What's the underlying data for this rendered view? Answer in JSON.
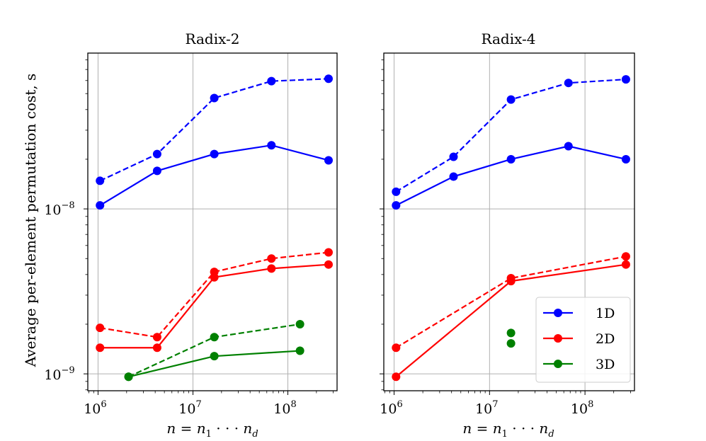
{
  "chart_data": {
    "type": "line",
    "ylabel": "Average per-element permutation cost, s",
    "shared_ylim": [
      7.9e-10,
      8.8e-08
    ],
    "yscale": "log",
    "xscale": "log",
    "yticks": [
      {
        "value": 1e-09,
        "base": "10",
        "exp": "−9"
      },
      {
        "value": 1e-08,
        "base": "10",
        "exp": "−8"
      }
    ],
    "xticks": [
      {
        "value": 1000000,
        "base": "10",
        "exp": "6"
      },
      {
        "value": 10000000,
        "base": "10",
        "exp": "7"
      },
      {
        "value": 100000000,
        "base": "10",
        "exp": "8"
      }
    ],
    "legend": {
      "location": "lower right",
      "entries": [
        {
          "label": "1D",
          "color": "#0000ff"
        },
        {
          "label": "2D",
          "color": "#ff0000"
        },
        {
          "label": "3D",
          "color": "#008000"
        }
      ]
    },
    "panels": [
      {
        "title": "Radix-2",
        "xlabel": "n = n1 ··· nd",
        "xlim": [
          780000,
          330000000
        ],
        "series": [
          {
            "name": "1D",
            "color": "#0000ff",
            "style": "dashed",
            "x": [
              1048576,
              4194304,
              16777216,
              67108864,
              268435456
            ],
            "y": [
              1.48e-08,
              2.15e-08,
              4.7e-08,
              5.95e-08,
              6.15e-08
            ]
          },
          {
            "name": "1D",
            "color": "#0000ff",
            "style": "solid",
            "x": [
              1048576,
              4194304,
              16777216,
              67108864,
              268435456
            ],
            "y": [
              1.05e-08,
              1.7e-08,
              2.15e-08,
              2.43e-08,
              1.97e-08
            ]
          },
          {
            "name": "2D",
            "color": "#ff0000",
            "style": "dashed",
            "x": [
              1048576,
              4194304,
              16777216,
              67108864,
              268435456
            ],
            "y": [
              1.9e-09,
              1.67e-09,
              4.15e-09,
              5e-09,
              5.45e-09
            ]
          },
          {
            "name": "2D",
            "color": "#ff0000",
            "style": "solid",
            "x": [
              1048576,
              4194304,
              16777216,
              67108864,
              268435456
            ],
            "y": [
              1.44e-09,
              1.44e-09,
              3.85e-09,
              4.35e-09,
              4.6e-09
            ]
          },
          {
            "name": "3D",
            "color": "#008000",
            "style": "dashed",
            "x": [
              2097152,
              16777216,
              134217728
            ],
            "y": [
              9.6e-10,
              1.67e-09,
              2e-09
            ]
          },
          {
            "name": "3D",
            "color": "#008000",
            "style": "solid",
            "x": [
              2097152,
              16777216,
              134217728
            ],
            "y": [
              9.6e-10,
              1.28e-09,
              1.38e-09
            ]
          }
        ]
      },
      {
        "title": "Radix-4",
        "xlabel": "n = n1 ··· nd",
        "xlim": [
          780000,
          330000000
        ],
        "series": [
          {
            "name": "1D",
            "color": "#0000ff",
            "style": "dashed",
            "x": [
              1048576,
              4194304,
              16777216,
              67108864,
              268435456
            ],
            "y": [
              1.27e-08,
              2.07e-08,
              4.6e-08,
              5.8e-08,
              6.1e-08
            ]
          },
          {
            "name": "1D",
            "color": "#0000ff",
            "style": "solid",
            "x": [
              1048576,
              4194304,
              16777216,
              67108864,
              268435456
            ],
            "y": [
              1.05e-08,
              1.57e-08,
              2e-08,
              2.4e-08,
              2e-08
            ]
          },
          {
            "name": "2D",
            "color": "#ff0000",
            "style": "dashed",
            "x": [
              1048576,
              16777216,
              268435456
            ],
            "y": [
              1.44e-09,
              3.8e-09,
              5.15e-09
            ]
          },
          {
            "name": "2D",
            "color": "#ff0000",
            "style": "solid",
            "x": [
              1048576,
              16777216,
              268435456
            ],
            "y": [
              9.6e-10,
              3.65e-09,
              4.6e-09
            ]
          },
          {
            "name": "3D",
            "color": "#008000",
            "style": "none",
            "x": [
              16777216
            ],
            "y": [
              1.77e-09
            ]
          },
          {
            "name": "3D",
            "color": "#008000",
            "style": "none",
            "x": [
              16777216
            ],
            "y": [
              1.53e-09
            ]
          }
        ]
      }
    ]
  }
}
